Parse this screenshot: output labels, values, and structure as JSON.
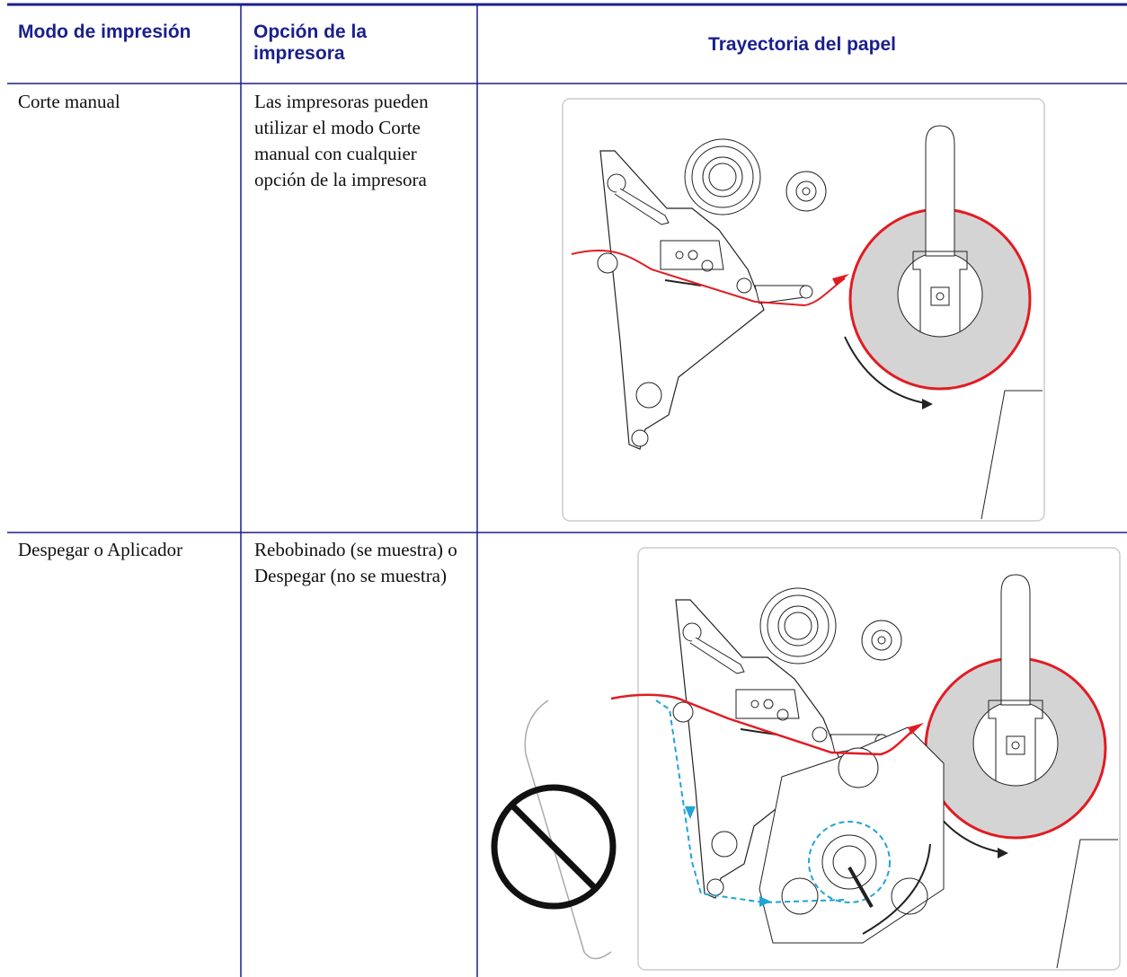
{
  "table": {
    "header": [
      "Modo de impresión",
      "Opción de la impresora",
      "Trayectoria del papel"
    ],
    "rows": [
      [
        "Corte manual",
        "Las impresoras pueden utilizar el modo Corte manual con cualquier opción de la impresora"
      ],
      [
        "Despegar o Aplicador",
        "Rebobinado (se muestra) o Despegar (no se muestra)"
      ]
    ]
  }
}
